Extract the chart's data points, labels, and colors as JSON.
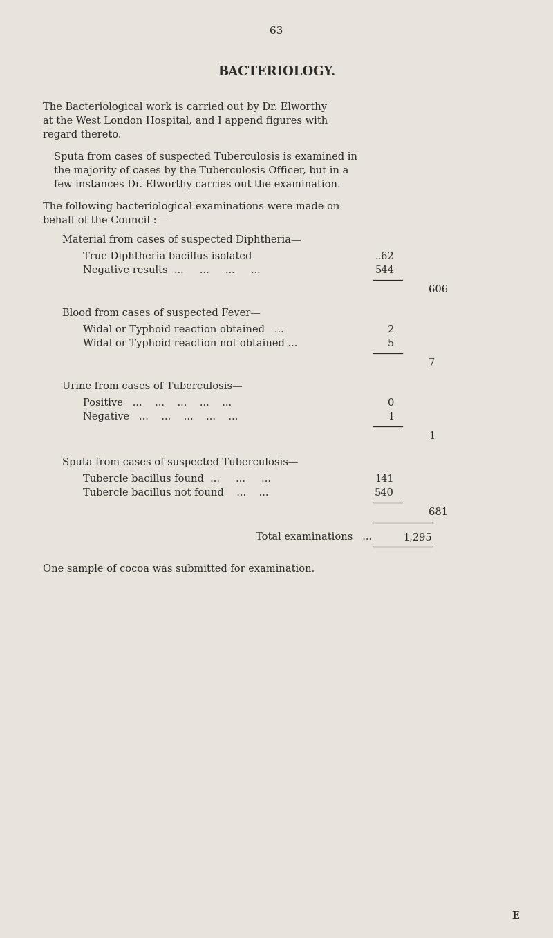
{
  "bg_color": "#e8e4dc",
  "text_color": "#2a2a2a",
  "page_number": "63",
  "title": "BACTERIOLOGY.",
  "para1_lines": [
    "The Bacteriological work is carried out by Dr. Elworthy",
    "at the West London Hospital, and I append figures with",
    "regard thereto."
  ],
  "para2_lines": [
    "Sputa from cases of suspected Tuberculosis is examined in",
    "the majority of cases by the Tuberculosis Officer, but in a",
    "few instances Dr. Elworthy carries out the examination."
  ],
  "para3_lines": [
    "The following bacteriological examinations were made on",
    "behalf of the Council :—"
  ],
  "section1_head": "Material from cases of suspected Diphtheria—",
  "s1_row1_label": "True Diphtheria bacillus isolated",
  "s1_row1_dots": "...",
  "s1_row1_val": "62",
  "s1_row2_label": "Negative results  ...     ...     ...     ...",
  "s1_row2_val": "544",
  "s1_total": "606",
  "section2_head": "Blood from cases of suspected Fever—",
  "s2_row1_label": "Widal or Typhoid reaction obtained   ...",
  "s2_row1_val": "2",
  "s2_row2_label": "Widal or Typhoid reaction not obtained ...",
  "s2_row2_val": "5",
  "s2_total": "7",
  "section3_head": "Urine from cases of Tuberculosis—",
  "s3_row1_label": "Positive   ...    ...    ...    ...    ...",
  "s3_row1_val": "0",
  "s3_row2_label": "Negative   ...    ...    ...    ...    ...",
  "s3_row2_val": "1",
  "s3_total": "1",
  "section4_head": "Sputa from cases of suspected Tuberculosis—",
  "s4_row1_label": "Tubercle bacillus found  ...     ...     ...",
  "s4_row1_val": "141",
  "s4_row2_label": "Tubercle bacillus not found    ...    ...",
  "s4_row2_val": "540",
  "s4_total": "681",
  "total_label": "Total examinations   ...",
  "total_val": "1,295",
  "footer_text": "One sample of cocoa was submitted for examination.",
  "page_letter": "E"
}
